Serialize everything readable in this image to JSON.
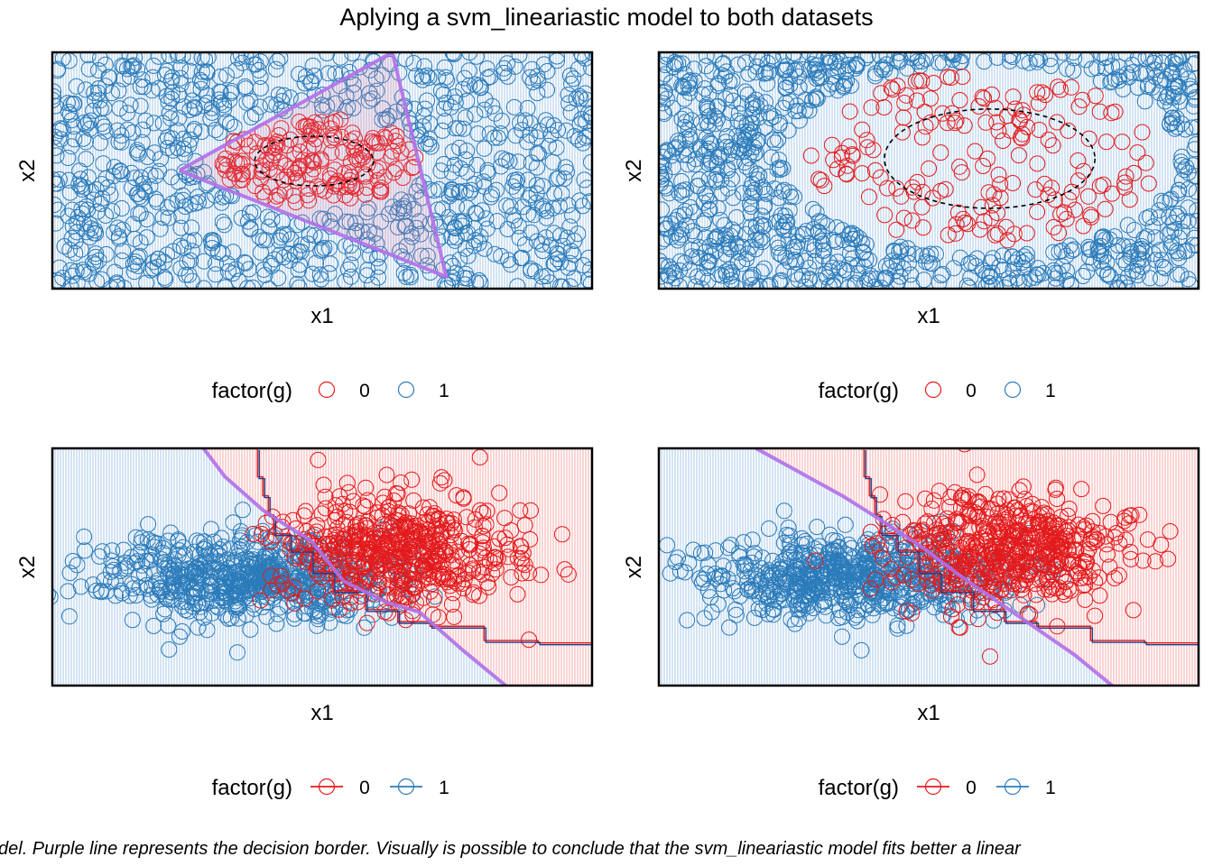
{
  "title": "Aplying a svm_lineariastic model to both datasets",
  "caption": "del. Purple line represents the decision border. Visually is possible to conclude that the svm_lineariastic model fits better a linear",
  "colors": {
    "class0": "#e31a1c",
    "class1": "#2b7bba",
    "region0_line": "#f4a0a0",
    "region1_line": "#9ec3e6",
    "border": "#b070e8",
    "contour": "#000000",
    "panel_frame": "#000000"
  },
  "chart_data": [
    {
      "type": "scatter",
      "panel": "top-left",
      "xlabel": "x1",
      "ylabel": "x2",
      "xlim": [
        0,
        100
      ],
      "ylim": [
        0,
        100
      ],
      "background_class": "1",
      "legend": {
        "title": "factor(g)",
        "position": "bottom",
        "entries": [
          "0",
          "1"
        ],
        "key_style": "point"
      },
      "points": {
        "n_class1": 900,
        "n_class0": 180,
        "class0_region": "ellipse",
        "class0_center": [
          49,
          54
        ],
        "class0_radius": [
          20,
          20
        ]
      },
      "contour_dashed": {
        "center": [
          48.5,
          54
        ],
        "radius": [
          22,
          21
        ]
      },
      "decision_border": [
        [
          23.5,
          50
        ],
        [
          63,
          100
        ],
        [
          73,
          5
        ],
        [
          23.5,
          50
        ]
      ]
    },
    {
      "type": "scatter",
      "panel": "top-right",
      "xlabel": "x1",
      "ylabel": "x2",
      "xlim": [
        0,
        100
      ],
      "ylim": [
        0,
        100
      ],
      "background_class": "1",
      "legend": {
        "title": "factor(g)",
        "position": "bottom",
        "entries": [
          "0",
          "1"
        ],
        "key_style": "point"
      },
      "points": {
        "n_class1": 900,
        "n_class0": 180,
        "class0_region": "ellipse",
        "class0_center": [
          60,
          55
        ],
        "class0_radius": [
          35,
          39
        ]
      },
      "contour_dashed": {
        "center": [
          61.3,
          55
        ],
        "radius": [
          39,
          42
        ]
      },
      "decision_border": []
    },
    {
      "type": "scatter",
      "panel": "bottom-left",
      "xlabel": "x1",
      "ylabel": "x2",
      "xlim": [
        0,
        100
      ],
      "ylim": [
        0,
        100
      ],
      "background_split": true,
      "legend": {
        "title": "factor(g)",
        "position": "bottom",
        "entries": [
          "0",
          "1"
        ],
        "key_style": "line-point"
      },
      "clusters": [
        {
          "class": "1",
          "center": [
            36,
            45
          ],
          "spread": [
            14,
            9
          ],
          "n": 650
        },
        {
          "class": "0",
          "center": [
            64,
            57
          ],
          "spread": [
            11,
            12
          ],
          "n": 550
        }
      ],
      "decision_border": [
        [
          28,
          100
        ],
        [
          32,
          88
        ],
        [
          36,
          80
        ],
        [
          39,
          74
        ],
        [
          43,
          68
        ],
        [
          48,
          61
        ],
        [
          54,
          44
        ],
        [
          62,
          35
        ],
        [
          68,
          31
        ],
        [
          70,
          27
        ],
        [
          76,
          15
        ],
        [
          84,
          0
        ]
      ],
      "region_split": [
        [
          38,
          100
        ],
        [
          40,
          90
        ],
        [
          42,
          80
        ],
        [
          48,
          64
        ],
        [
          54,
          44
        ],
        [
          62,
          35
        ],
        [
          68,
          31
        ],
        [
          74,
          26
        ],
        [
          82,
          21
        ],
        [
          100,
          18
        ]
      ],
      "step_line": [
        [
          38,
          100
        ],
        [
          39,
          88
        ],
        [
          40,
          80
        ],
        [
          41,
          72
        ],
        [
          44,
          64
        ],
        [
          48,
          57
        ],
        [
          52,
          48
        ],
        [
          58,
          40
        ],
        [
          64,
          32
        ],
        [
          70,
          27
        ],
        [
          80,
          25
        ],
        [
          90,
          19
        ],
        [
          100,
          18
        ]
      ]
    },
    {
      "type": "scatter",
      "panel": "bottom-right",
      "xlabel": "x1",
      "ylabel": "x2",
      "xlim": [
        0,
        100
      ],
      "ylim": [
        0,
        100
      ],
      "background_split": true,
      "legend": {
        "title": "factor(g)",
        "position": "bottom",
        "entries": [
          "0",
          "1"
        ],
        "key_style": "line-point"
      },
      "clusters": [
        {
          "class": "1",
          "center": [
            36,
            45
          ],
          "spread": [
            14,
            9
          ],
          "n": 650
        },
        {
          "class": "0",
          "center": [
            64,
            57
          ],
          "spread": [
            11,
            12
          ],
          "n": 550
        }
      ],
      "decision_border": [
        [
          18,
          100
        ],
        [
          26,
          90
        ],
        [
          34,
          80
        ],
        [
          41,
          70
        ],
        [
          49,
          58
        ],
        [
          56,
          46
        ],
        [
          63,
          35
        ],
        [
          70,
          24
        ],
        [
          77,
          13
        ],
        [
          84,
          0
        ]
      ],
      "region_split": [
        [
          38,
          100
        ],
        [
          40,
          90
        ],
        [
          42,
          80
        ],
        [
          48,
          64
        ],
        [
          54,
          44
        ],
        [
          62,
          35
        ],
        [
          68,
          31
        ],
        [
          74,
          26
        ],
        [
          82,
          21
        ],
        [
          100,
          18
        ]
      ],
      "step_line": [
        [
          38,
          100
        ],
        [
          39,
          88
        ],
        [
          40,
          80
        ],
        [
          41,
          72
        ],
        [
          44,
          64
        ],
        [
          48,
          57
        ],
        [
          52,
          48
        ],
        [
          58,
          40
        ],
        [
          64,
          32
        ],
        [
          70,
          27
        ],
        [
          80,
          25
        ],
        [
          90,
          19
        ],
        [
          100,
          18
        ]
      ]
    }
  ]
}
